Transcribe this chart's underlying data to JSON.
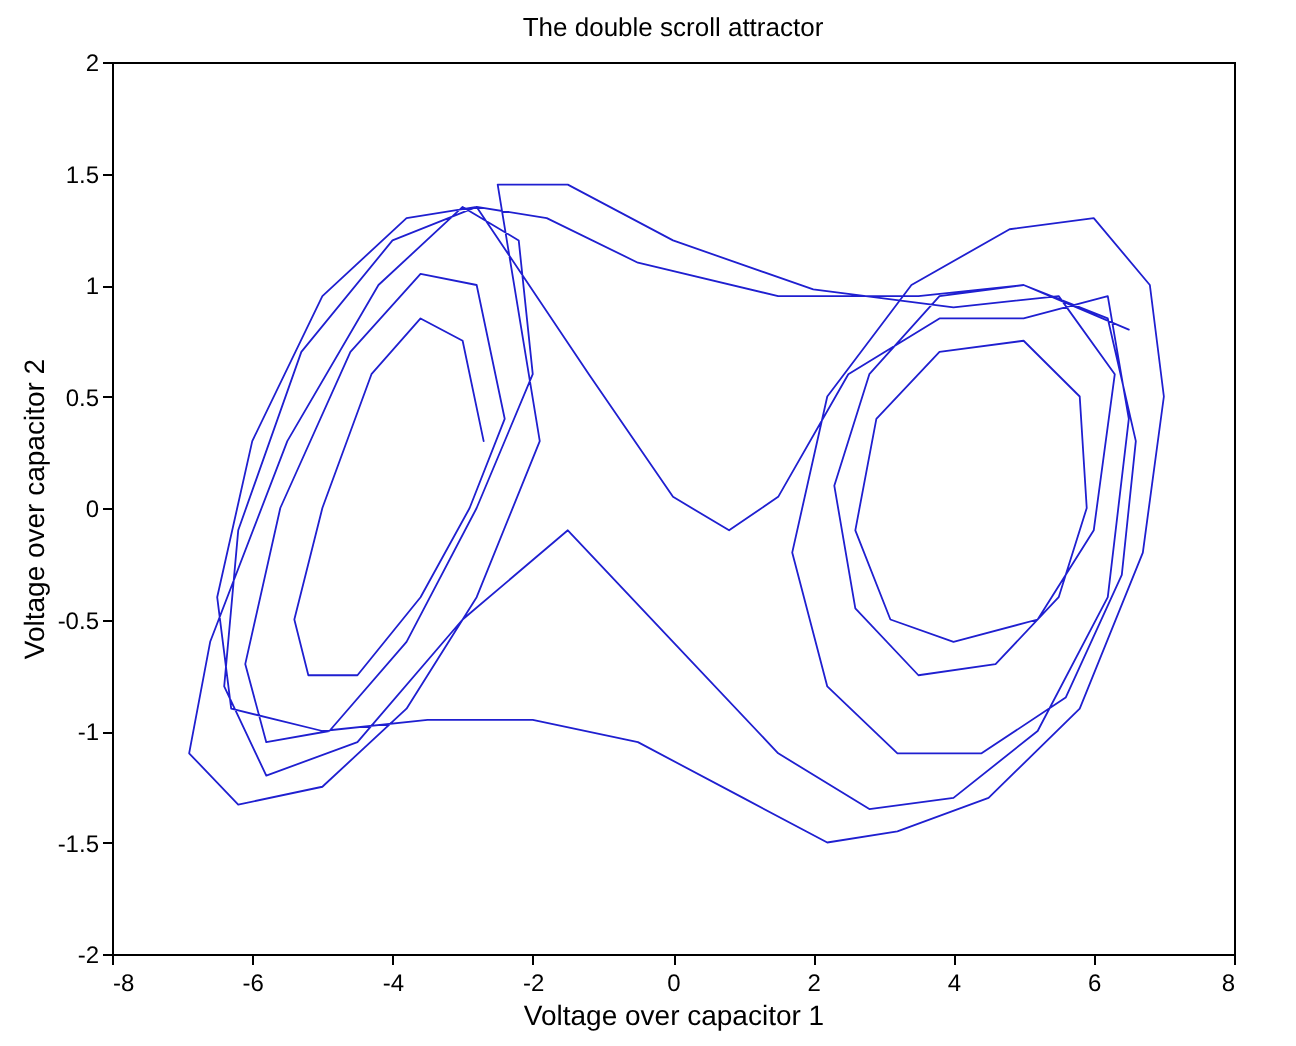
{
  "chart_data": {
    "type": "line",
    "title": "The double scroll attractor",
    "xlabel": "Voltage over capacitor 1",
    "ylabel": "Voltage over capacitor 2",
    "color": "#1f1fd0",
    "marker": "none",
    "line_style": "solid",
    "xlim": [
      -8,
      8
    ],
    "xticks": [
      -8,
      -6,
      -4,
      -2,
      0,
      2,
      4,
      6,
      8
    ],
    "ylim": [
      -2,
      2
    ],
    "yticks": [
      -2,
      -1.5,
      -1,
      -0.5,
      0,
      0.5,
      1,
      1.5,
      2
    ],
    "x": [
      -2.7,
      -3.0,
      -3.6,
      -4.3,
      -5.0,
      -5.4,
      -5.2,
      -4.5,
      -3.6,
      -2.9,
      -2.4,
      -2.8,
      -3.6,
      -4.6,
      -5.6,
      -6.1,
      -5.8,
      -4.9,
      -3.8,
      -2.8,
      -2.0,
      -2.2,
      -3.0,
      -4.2,
      -5.5,
      -6.6,
      -6.9,
      -6.2,
      -5.0,
      -3.8,
      -2.8,
      -1.9,
      -2.5,
      -1.5,
      0,
      2,
      4,
      5.5,
      6.3,
      6.0,
      5.2,
      4.0,
      3.1,
      2.6,
      2.9,
      3.8,
      5.0,
      5.8,
      5.9,
      5.5,
      4.6,
      3.5,
      2.6,
      2.3,
      2.8,
      3.8,
      5.0,
      6.2,
      6.6,
      6.4,
      5.6,
      4.4,
      3.2,
      2.2,
      1.7,
      2.2,
      3.4,
      4.8,
      6.0,
      6.8,
      7.0,
      6.7,
      5.8,
      4.5,
      3.2,
      2.2,
      1.0,
      -0.5,
      -2.0,
      -3.5,
      -5.0,
      -6.3,
      -6.5,
      -6.0,
      -5.0,
      -3.8,
      -2.8,
      -1.2,
      0.0,
      0.8,
      1.5,
      2.5,
      3.8,
      5.0,
      6.2,
      6.5,
      6.2,
      5.2,
      4.0,
      2.8,
      1.5,
      0,
      -1.5,
      -3.0,
      -4.5,
      -5.8,
      -6.4,
      -6.2,
      -5.3,
      -4.0,
      -2.8,
      -1.8,
      -0.5,
      1.5,
      3.5,
      5.0,
      6.5
    ],
    "values": [
      0.3,
      0.75,
      0.85,
      0.6,
      0.0,
      -0.5,
      -0.75,
      -0.75,
      -0.4,
      0.0,
      0.4,
      1.0,
      1.05,
      0.7,
      0.0,
      -0.7,
      -1.05,
      -1.0,
      -0.6,
      0.0,
      0.6,
      1.2,
      1.35,
      1.0,
      0.3,
      -0.6,
      -1.1,
      -1.33,
      -1.25,
      -0.9,
      -0.4,
      0.3,
      1.45,
      1.45,
      1.2,
      0.98,
      0.9,
      0.95,
      0.6,
      -0.1,
      -0.5,
      -0.6,
      -0.5,
      -0.1,
      0.4,
      0.7,
      0.75,
      0.5,
      0.0,
      -0.4,
      -0.7,
      -0.75,
      -0.45,
      0.1,
      0.6,
      0.95,
      1.0,
      0.85,
      0.3,
      -0.3,
      -0.85,
      -1.1,
      -1.1,
      -0.8,
      -0.2,
      0.5,
      1.0,
      1.25,
      1.3,
      1.0,
      0.5,
      -0.2,
      -0.9,
      -1.3,
      -1.45,
      -1.5,
      -1.3,
      -1.05,
      -0.95,
      -0.95,
      -1.0,
      -0.9,
      -0.4,
      0.3,
      0.95,
      1.3,
      1.35,
      0.6,
      0.05,
      -0.1,
      0.05,
      0.6,
      0.85,
      0.85,
      0.95,
      0.4,
      -0.4,
      -1.0,
      -1.3,
      -1.35,
      -1.1,
      -0.6,
      -0.1,
      -0.5,
      -1.05,
      -1.2,
      -0.8,
      -0.1,
      0.7,
      1.2,
      1.35,
      1.3,
      1.1,
      0.95,
      0.95,
      1.0,
      0.8
    ]
  }
}
